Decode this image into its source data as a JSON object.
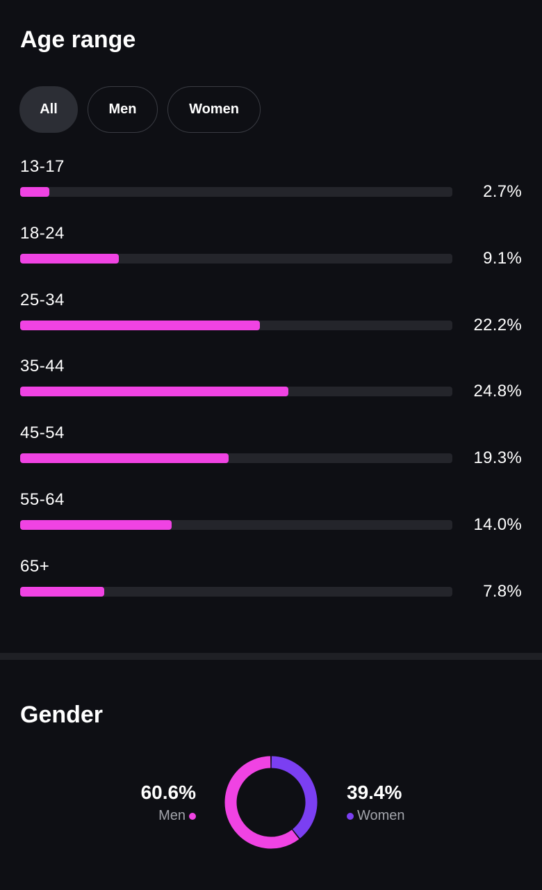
{
  "age_section": {
    "title": "Age range",
    "filters": [
      {
        "label": "All",
        "active": true
      },
      {
        "label": "Men",
        "active": false
      },
      {
        "label": "Women",
        "active": false
      }
    ],
    "bar_color": "#f043e3",
    "track_color": "#24252b"
  },
  "gender_section": {
    "title": "Gender",
    "men": {
      "percent_label": "60.6%",
      "legend": "Men",
      "color": "#f043e3"
    },
    "women": {
      "percent_label": "39.4%",
      "legend": "Women",
      "color": "#7b3ff2"
    }
  },
  "chart_data": [
    {
      "type": "bar",
      "orientation": "horizontal",
      "categories": [
        "13-17",
        "18-24",
        "25-34",
        "35-44",
        "45-54",
        "55-64",
        "65+"
      ],
      "values": [
        2.7,
        9.1,
        22.2,
        24.8,
        19.3,
        14.0,
        7.8
      ],
      "value_labels": [
        "2.7%",
        "9.1%",
        "22.2%",
        "24.8%",
        "19.3%",
        "14.0%",
        "7.8%"
      ],
      "xlim": [
        0,
        100
      ],
      "title": "Age range"
    },
    {
      "type": "pie",
      "variant": "donut",
      "categories": [
        "Men",
        "Women"
      ],
      "values": [
        60.6,
        39.4
      ],
      "colors": [
        "#f043e3",
        "#7b3ff2"
      ],
      "title": "Gender"
    }
  ]
}
